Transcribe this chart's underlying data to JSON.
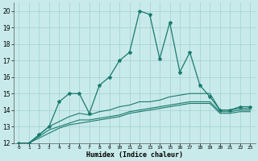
{
  "x": [
    0,
    1,
    2,
    3,
    4,
    5,
    6,
    7,
    8,
    9,
    10,
    11,
    12,
    13,
    14,
    15,
    16,
    17,
    18,
    19,
    20,
    21,
    22,
    23
  ],
  "line_main": [
    12.0,
    12.0,
    12.5,
    13.0,
    14.5,
    15.0,
    15.0,
    13.8,
    15.5,
    16.0,
    17.0,
    17.5,
    20.0,
    19.8,
    17.1,
    19.3,
    16.3,
    17.5,
    15.5,
    14.8,
    14.0,
    14.0,
    14.2,
    14.2
  ],
  "line2": [
    12.0,
    12.0,
    12.5,
    13.0,
    13.3,
    13.6,
    13.8,
    13.7,
    13.9,
    14.0,
    14.2,
    14.3,
    14.5,
    14.5,
    14.6,
    14.8,
    14.9,
    15.0,
    15.0,
    15.0,
    14.0,
    14.0,
    14.1,
    14.1
  ],
  "line3": [
    12.0,
    12.0,
    12.4,
    12.8,
    13.0,
    13.2,
    13.4,
    13.4,
    13.5,
    13.6,
    13.7,
    13.9,
    14.0,
    14.1,
    14.2,
    14.3,
    14.4,
    14.5,
    14.5,
    14.5,
    13.9,
    13.9,
    14.0,
    14.0
  ],
  "line4": [
    12.0,
    12.0,
    12.3,
    12.6,
    12.9,
    13.1,
    13.2,
    13.3,
    13.4,
    13.5,
    13.6,
    13.8,
    13.9,
    14.0,
    14.1,
    14.2,
    14.3,
    14.4,
    14.4,
    14.4,
    13.8,
    13.8,
    13.9,
    13.9
  ],
  "color": "#1a7a6e",
  "bg_color": "#c8eaea",
  "grid_color": "#a8d4d4",
  "xlabel": "Humidex (Indice chaleur)",
  "ylim": [
    12,
    20.5
  ],
  "xlim": [
    0,
    23
  ],
  "yticks": [
    12,
    13,
    14,
    15,
    16,
    17,
    18,
    19,
    20
  ],
  "xticks": [
    0,
    1,
    2,
    3,
    4,
    5,
    6,
    7,
    8,
    9,
    10,
    11,
    12,
    13,
    14,
    15,
    16,
    17,
    18,
    19,
    20,
    21,
    22,
    23
  ]
}
